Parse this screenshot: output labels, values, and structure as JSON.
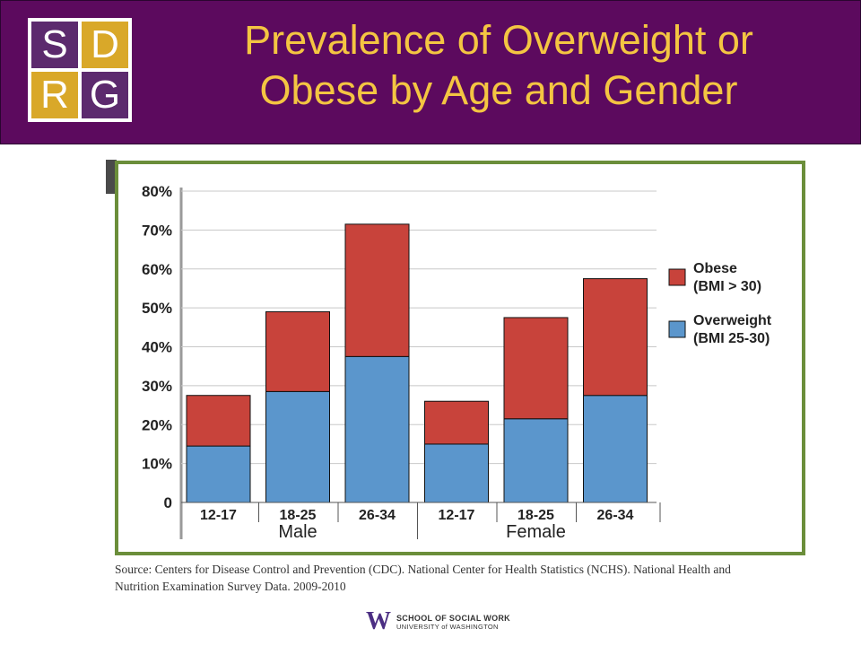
{
  "header": {
    "title_line1": "Prevalence of Overweight or",
    "title_line2": "Obese by Age and Gender",
    "logo": {
      "letters": [
        "S",
        "D",
        "R",
        "G"
      ],
      "colors": [
        "#5c2a6e",
        "#d9a829",
        "#d9a829",
        "#5c2a6e"
      ]
    }
  },
  "chart_data": {
    "type": "bar",
    "stacked": true,
    "categories": [
      "12-17",
      "18-25",
      "26-34",
      "12-17",
      "18-25",
      "26-34"
    ],
    "groups": [
      {
        "label": "Male",
        "categories": [
          "12-17",
          "18-25",
          "26-34"
        ]
      },
      {
        "label": "Female",
        "categories": [
          "12-17",
          "18-25",
          "26-34"
        ]
      }
    ],
    "series": [
      {
        "name": "Overweight (BMI 25-30)",
        "legend_line1": "Overweight",
        "legend_line2": "(BMI 25-30)",
        "color": "#5b96cc",
        "values": [
          14.5,
          28.5,
          37.5,
          15,
          21.5,
          27.5
        ]
      },
      {
        "name": "Obese (BMI > 30)",
        "legend_line1": "Obese",
        "legend_line2": "(BMI > 30)",
        "color": "#c8433b",
        "values": [
          13,
          20.5,
          34,
          11,
          26,
          30
        ]
      }
    ],
    "ylim": [
      0,
      80
    ],
    "yticks": [
      "0",
      "10%",
      "20%",
      "30%",
      "40%",
      "50%",
      "60%",
      "70%",
      "80%"
    ],
    "grid": true,
    "legend_position": "right"
  },
  "footer": {
    "source_line1": "Source: Centers for Disease Control and Prevention (CDC). National Center for Health Statistics (NCHS). National Health and",
    "source_line2": "Nutrition Examination Survey Data. 2009-2010",
    "uw_mark": "W",
    "uw_line1": "SCHOOL OF SOCIAL WORK",
    "uw_line2": "UNIVERSITY of WASHINGTON"
  }
}
